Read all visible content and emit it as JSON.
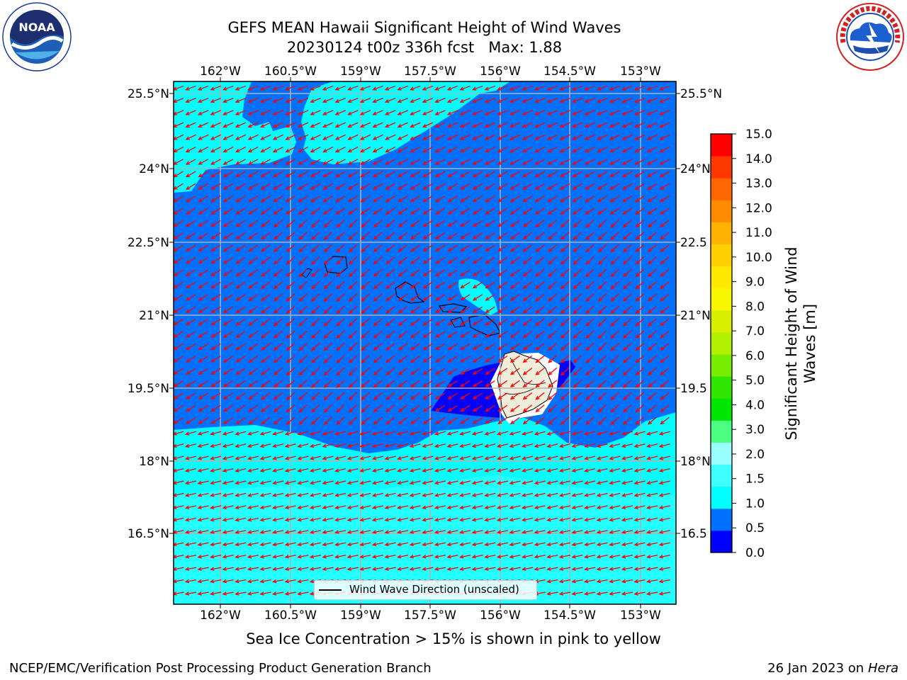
{
  "title_line1": "GEFS MEAN Hawaii Significant Height of Wind Waves",
  "title_line2": "20230124 t00z 336h fcst   Max: 1.88",
  "logos": {
    "left": {
      "name": "noaa-logo",
      "text": "NOAA",
      "ring_text": "NATIONAL OCEANIC AND ATMOSPHERIC ADMINISTRATION · U.S. DEPARTMENT OF COMMERCE"
    },
    "right": {
      "name": "nws-logo",
      "ring_text": "NATIONAL WEATHER SERVICE"
    }
  },
  "map": {
    "lon_labels": [
      "162°W",
      "160.5°W",
      "159°W",
      "157.5°W",
      "156°W",
      "154.5°W",
      "153°W"
    ],
    "lat_labels": [
      "25.5°N",
      "24°N",
      "22.5°N",
      "21°N",
      "19.5°N",
      "18°N",
      "16.5°N"
    ],
    "lat_labels_right": [
      "25.5°N",
      "24°N",
      "22.5",
      "21°N",
      "19.5",
      "18°N",
      "16.5"
    ],
    "arrow_color": "#ff0000",
    "land_color": "#efecd9",
    "legend_label": "Wind Wave Direction (unscaled)"
  },
  "colorbar": {
    "title_line1": "Significant Height of Wind",
    "title_line2": "Waves [m]",
    "ticks": [
      "15.0",
      "14.0",
      "13.0",
      "12.0",
      "11.0",
      "10.0",
      "9.0",
      "8.0",
      "7.0",
      "6.0",
      "5.0",
      "4.0",
      "3.0",
      "2.0",
      "1.5",
      "1.0",
      "0.5",
      "0.0"
    ],
    "colors_bottom_to_top": [
      "#0000ff",
      "#0070ff",
      "#00ffff",
      "#40ffff",
      "#99ffff",
      "#4dff80",
      "#00e600",
      "#30e600",
      "#77ed00",
      "#b0f000",
      "#d8f000",
      "#f8f500",
      "#ffe800",
      "#ffd000",
      "#ffb300",
      "#ff8c00",
      "#ff6600",
      "#ff3700",
      "#ff0000"
    ]
  },
  "note": "Sea Ice Concentration > 15% is shown in pink to yellow",
  "footer_left": "NCEP/EMC/Verification Post Processing Product Generation Branch",
  "footer_date": "26 Jan 2023 on",
  "footer_machine": "Hera"
}
